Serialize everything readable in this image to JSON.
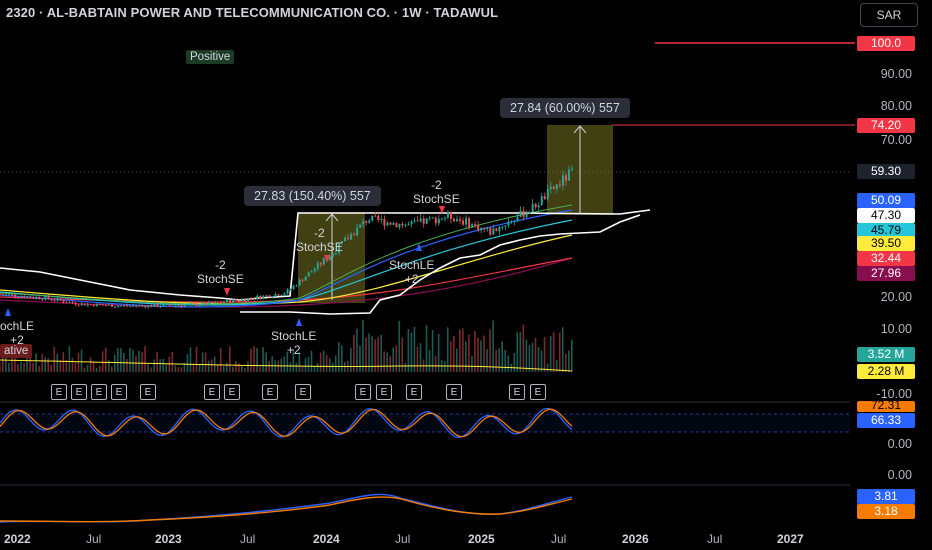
{
  "header": {
    "title": "2320 · AL-BABTAIN POWER AND TELECOMMUNICATION CO. · 1W · TADAWUL",
    "currency": "SAR"
  },
  "price_axis": {
    "labels": [
      "90.00",
      "80.00",
      "70.00",
      "20.00",
      "10.00"
    ],
    "tags": [
      {
        "text": "100.0",
        "bg": "#f23645",
        "fg": "#ffffff"
      },
      {
        "text": "74.20",
        "bg": "#f23645",
        "fg": "#ffffff"
      },
      {
        "text": "59.30",
        "bg": "#1e222d",
        "fg": "#ffffff"
      },
      {
        "text": "50.09",
        "bg": "#2962ff",
        "fg": "#ffffff"
      },
      {
        "text": "47.30",
        "bg": "#ffffff",
        "fg": "#000000"
      },
      {
        "text": "45.79",
        "bg": "#26c6da",
        "fg": "#000000"
      },
      {
        "text": "39.50",
        "bg": "#ffeb3b",
        "fg": "#000000"
      },
      {
        "text": "32.44",
        "bg": "#f23645",
        "fg": "#ffffff"
      },
      {
        "text": "27.96",
        "bg": "#880e4f",
        "fg": "#ffffff"
      }
    ]
  },
  "volume_axis": {
    "tags": [
      {
        "text": "3.52 M",
        "bg": "#26a69a",
        "fg": "#ffffff"
      },
      {
        "text": "2.28 M",
        "bg": "#ffeb3b",
        "fg": "#000000"
      }
    ],
    "labels": [
      "-10.00"
    ]
  },
  "stoch_axis": {
    "tags": [
      {
        "text": "72.31",
        "bg": "#f57c00",
        "fg": "#000000"
      },
      {
        "text": "66.33",
        "bg": "#2962ff",
        "fg": "#ffffff"
      }
    ],
    "labels": [
      "0.00",
      "0.00"
    ]
  },
  "macd_axis": {
    "tags": [
      {
        "text": "3.81",
        "bg": "#2962ff",
        "fg": "#ffffff"
      },
      {
        "text": "3.18",
        "bg": "#f57c00",
        "fg": "#ffffff"
      }
    ]
  },
  "time_axis": [
    {
      "text": "2022",
      "bold": true
    },
    {
      "text": "Jul",
      "bold": false
    },
    {
      "text": "2023",
      "bold": true
    },
    {
      "text": "Jul",
      "bold": false
    },
    {
      "text": "2024",
      "bold": true
    },
    {
      "text": "Jul",
      "bold": false
    },
    {
      "text": "2025",
      "bold": true
    },
    {
      "text": "Jul",
      "bold": false
    },
    {
      "text": "2026",
      "bold": true
    },
    {
      "text": "Jul",
      "bold": false
    },
    {
      "text": "2027",
      "bold": true
    }
  ],
  "measurements": [
    {
      "text": "27.84 (60.00%) 557"
    },
    {
      "text": "27.83 (150.40%) 557"
    }
  ],
  "signals": [
    {
      "text": "-2\nStochSE"
    },
    {
      "text": "-2\nStochSE"
    },
    {
      "text": "-2\nStochSE"
    },
    {
      "text": "StochLE\n+2"
    },
    {
      "text": "StochLE\n+2"
    },
    {
      "text": "ochLE\n+2"
    }
  ],
  "badges": {
    "positive": "Positive",
    "negative": "ative"
  },
  "earnings_marker": "E",
  "chart_data": {
    "type": "candlestick",
    "symbol": "2320",
    "interval": "1W",
    "exchange": "TADAWUL",
    "currency": "SAR",
    "last_close": 59.3,
    "levels": {
      "target_high": 100.0,
      "target": 74.2
    },
    "moving_averages": [
      50.09,
      47.3,
      45.79,
      39.5,
      32.44,
      27.96
    ],
    "volume": {
      "last": "3.52 M",
      "average": "2.28 M"
    },
    "stochastic": {
      "k": 72.31,
      "d": 66.33
    },
    "macd": {
      "macd": 3.81,
      "signal": 3.18
    },
    "price_points": [
      {
        "date": "2022-01",
        "close": 22
      },
      {
        "date": "2022-04",
        "close": 21
      },
      {
        "date": "2022-07",
        "close": 19
      },
      {
        "date": "2022-10",
        "close": 18.5
      },
      {
        "date": "2023-01",
        "close": 18.5
      },
      {
        "date": "2023-04",
        "close": 19
      },
      {
        "date": "2023-07",
        "close": 20.5
      },
      {
        "date": "2023-10",
        "close": 22.5
      },
      {
        "date": "2024-01",
        "close": 33
      },
      {
        "date": "2024-04",
        "close": 45
      },
      {
        "date": "2024-07",
        "close": 43
      },
      {
        "date": "2024-10",
        "close": 46
      },
      {
        "date": "2025-01",
        "close": 41
      },
      {
        "date": "2025-04",
        "close": 48
      },
      {
        "date": "2025-07",
        "close": 59.3
      }
    ]
  }
}
